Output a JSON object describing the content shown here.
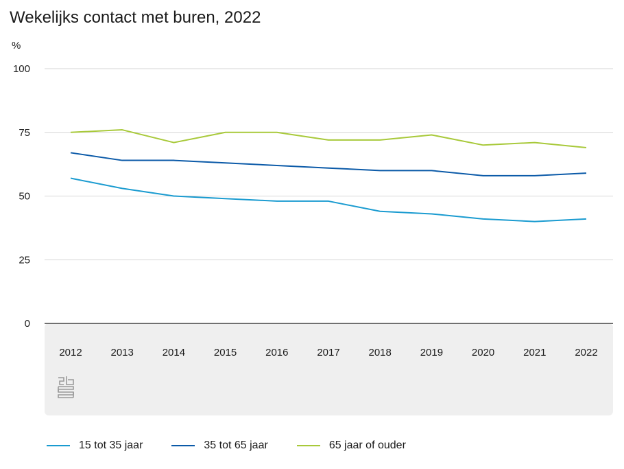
{
  "title": "Wekelijks contact met buren, 2022",
  "unit_label": "%",
  "logo_icon": "cbs-logo-icon",
  "chart_data": {
    "type": "line",
    "title": "Wekelijks contact met buren, 2022",
    "ylabel": "%",
    "xlabel": "",
    "ylim": [
      0,
      100
    ],
    "yticks": [
      0,
      25,
      50,
      75,
      100
    ],
    "grid": true,
    "legend_position": "bottom",
    "x": [
      "2012",
      "2013",
      "2014",
      "2015",
      "2016",
      "2017",
      "2018",
      "2019",
      "2020",
      "2021",
      "2022"
    ],
    "series": [
      {
        "name": "15 tot 35 jaar",
        "color": "#1a9bd0",
        "values": [
          57,
          53,
          50,
          49,
          48,
          48,
          44,
          43,
          41,
          40,
          41
        ]
      },
      {
        "name": "35 tot 65 jaar",
        "color": "#0b5aa8",
        "values": [
          67,
          64,
          64,
          63,
          62,
          61,
          60,
          60,
          58,
          58,
          59
        ]
      },
      {
        "name": "65 jaar of ouder",
        "color": "#a8c93a",
        "values": [
          75,
          76,
          71,
          75,
          75,
          72,
          72,
          74,
          70,
          71,
          69
        ]
      }
    ]
  }
}
